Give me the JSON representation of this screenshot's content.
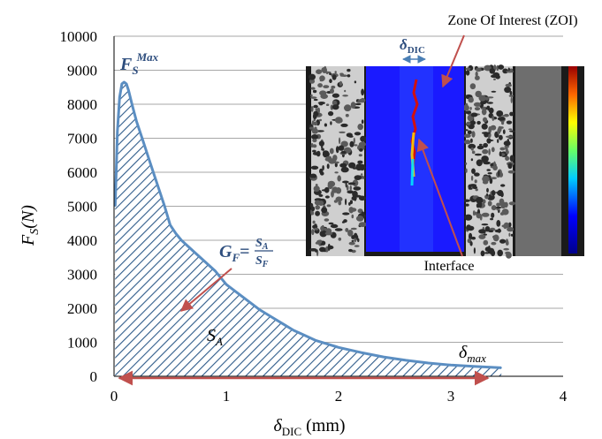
{
  "chart_data": {
    "type": "area",
    "title": "",
    "xlabel": "δ",
    "xlabel_sub": "DIC",
    "xlabel_unit": " (mm)",
    "ylabel": "F",
    "ylabel_sub": "S",
    "ylabel_unit": "(N)",
    "xlim": [
      0,
      4
    ],
    "ylim": [
      0,
      10000
    ],
    "x_ticks": [
      "0",
      "1",
      "2",
      "3",
      "4"
    ],
    "y_ticks": [
      "0",
      "1000",
      "2000",
      "3000",
      "4000",
      "5000",
      "6000",
      "7000",
      "8000",
      "9000",
      "10000"
    ],
    "grid": "horizontal",
    "series": [
      {
        "color": "#5b8ec2",
        "fill": "hatched",
        "x": [
          0.01,
          0.03,
          0.05,
          0.07,
          0.09,
          0.11,
          0.13,
          0.16,
          0.2,
          0.25,
          0.3,
          0.35,
          0.4,
          0.45,
          0.5,
          0.55,
          0.6,
          0.7,
          0.8,
          0.9,
          1.0,
          1.1,
          1.2,
          1.3,
          1.4,
          1.5,
          1.6,
          1.7,
          1.8,
          2.0,
          2.2,
          2.4,
          2.6,
          2.8,
          3.0,
          3.2,
          3.45
        ],
        "y": [
          5000,
          7200,
          8200,
          8600,
          8650,
          8600,
          8400,
          8000,
          7500,
          7000,
          6500,
          6000,
          5500,
          5000,
          4450,
          4200,
          4000,
          3700,
          3400,
          3100,
          2700,
          2450,
          2200,
          1950,
          1750,
          1550,
          1350,
          1200,
          1050,
          850,
          700,
          570,
          470,
          390,
          330,
          290,
          250
        ]
      }
    ],
    "annotations": {
      "fs_max": {
        "base": "F",
        "sub": "S",
        "sup": "Max"
      },
      "gf": {
        "lhs": "G",
        "lhs_sub": "F",
        "eq": "=",
        "num": "S",
        "num_sub": "A",
        "den": "S",
        "den_sub": "F"
      },
      "sa": {
        "base": "S",
        "sub": "A"
      },
      "delta_max": {
        "base": "δ",
        "sub": "max"
      },
      "inset_delta": {
        "base": "δ",
        "sub": "DIC"
      },
      "zoi_label": "Zone Of Interest (ZOI)",
      "interface_label": "Interface"
    },
    "colors": {
      "curve": "#5b8ec2",
      "hatch": "#2e5b8a",
      "arrow": "#c0504d",
      "annot": "#2e4e7e"
    }
  }
}
